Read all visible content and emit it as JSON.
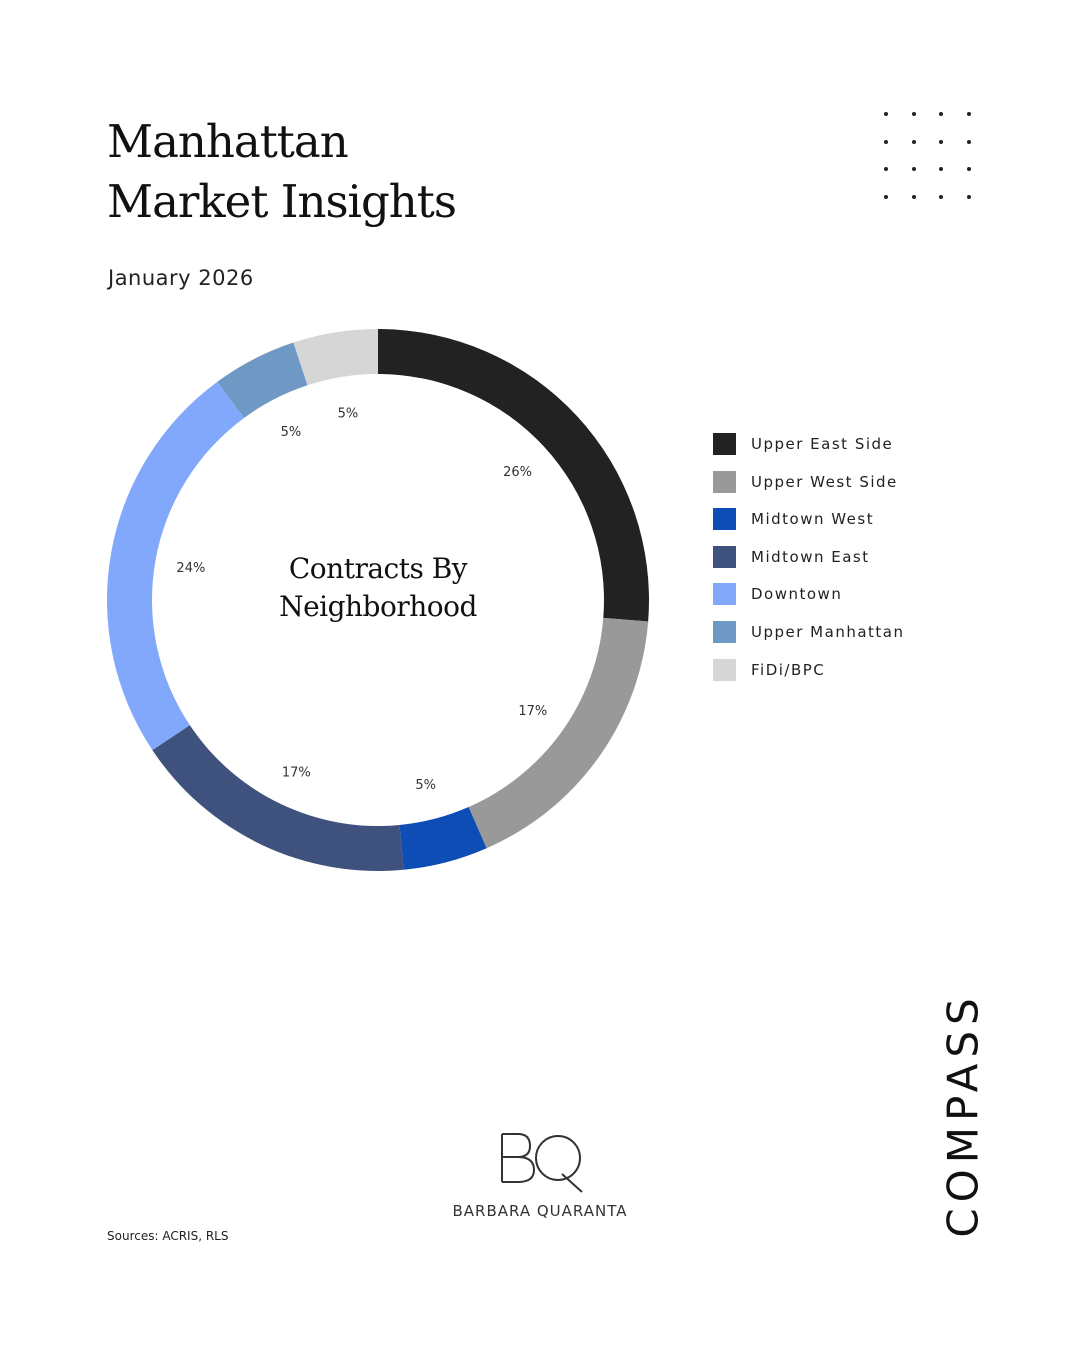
{
  "header": {
    "title_line1": "Manhattan",
    "title_line2": "Market Insights",
    "date": "January 2026"
  },
  "chart_data": {
    "type": "pie",
    "variant": "donut",
    "title": "Contracts By Neighborhood",
    "title_line1": "Contracts By",
    "title_line2": "Neighborhood",
    "series": [
      {
        "name": "Upper East Side",
        "value": 26,
        "label": "26%",
        "color": "#222222"
      },
      {
        "name": "Upper West Side",
        "value": 17,
        "label": "17%",
        "color": "#999999"
      },
      {
        "name": "Midtown West",
        "value": 5,
        "label": "5%",
        "color": "#0d4db5"
      },
      {
        "name": "Midtown East",
        "value": 17,
        "label": "17%",
        "color": "#3f527d"
      },
      {
        "name": "Downtown",
        "value": 24,
        "label": "24%",
        "color": "#82a8fb"
      },
      {
        "name": "Upper Manhattan",
        "value": 5,
        "label": "5%",
        "color": "#6f99c4"
      },
      {
        "name": "FiDi/BPC",
        "value": 5,
        "label": "5%",
        "color": "#d6d6d6"
      }
    ],
    "legend_position": "right"
  },
  "brand": {
    "logo_text": "COMPASS",
    "agent_monogram": "BQ",
    "agent_name": "BARBARA QUARANTA"
  },
  "footer": {
    "sources": "Sources: ACRIS, RLS"
  }
}
